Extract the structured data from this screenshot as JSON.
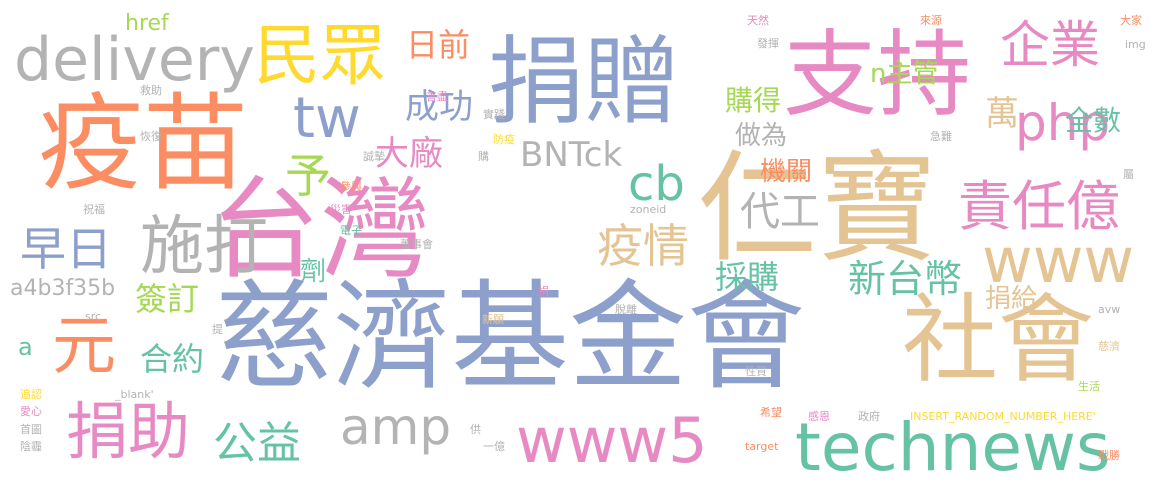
{
  "colors": {
    "orange": "#fc8d62",
    "blue": "#8da0cb",
    "pink": "#e78ac3",
    "green": "#66c2a5",
    "lime": "#a6d854",
    "yellow": "#ffd92f",
    "tan": "#e5c494",
    "gray": "#b3b3b3"
  },
  "words": [
    {
      "text": "慈濟基金會",
      "color": "blue"
    },
    {
      "text": "台灣",
      "color": "pink"
    },
    {
      "text": "仁寶",
      "color": "tan"
    },
    {
      "text": "疫苗",
      "color": "orange"
    },
    {
      "text": "捐贈",
      "color": "blue"
    },
    {
      "text": "支持",
      "color": "pink"
    },
    {
      "text": "社會",
      "color": "tan"
    },
    {
      "text": "technews",
      "color": "green"
    },
    {
      "text": "www5",
      "color": "pink"
    },
    {
      "text": "delivery",
      "color": "gray"
    },
    {
      "text": "民眾",
      "color": "yellow"
    },
    {
      "text": "施打",
      "color": "gray"
    },
    {
      "text": "捐助",
      "color": "pink"
    },
    {
      "text": "元",
      "color": "orange"
    },
    {
      "text": "www",
      "color": "tan"
    },
    {
      "text": "責任億",
      "color": "pink"
    },
    {
      "text": "企業",
      "color": "pink"
    },
    {
      "text": "php",
      "color": "pink"
    },
    {
      "text": "amp",
      "color": "gray"
    },
    {
      "text": "公益",
      "color": "green"
    },
    {
      "text": "tw",
      "color": "blue"
    },
    {
      "text": "早日",
      "color": "blue"
    },
    {
      "text": "cb",
      "color": "green"
    },
    {
      "text": "疫情",
      "color": "tan"
    },
    {
      "text": "代工",
      "color": "gray"
    },
    {
      "text": "新台幣",
      "color": "green"
    },
    {
      "text": "大廠",
      "color": "pink"
    },
    {
      "text": "成功",
      "color": "blue"
    },
    {
      "text": "日前",
      "color": "orange"
    },
    {
      "text": "BNTck",
      "color": "gray"
    },
    {
      "text": "萬",
      "color": "tan"
    },
    {
      "text": "予",
      "color": "lime"
    },
    {
      "text": "採購",
      "color": "green"
    },
    {
      "text": "合約",
      "color": "green"
    },
    {
      "text": "簽訂",
      "color": "lime"
    },
    {
      "text": "全數",
      "color": "green"
    },
    {
      "text": "購得",
      "color": "lime"
    },
    {
      "text": "做為",
      "color": "gray"
    },
    {
      "text": "機關",
      "color": "orange"
    },
    {
      "text": "n主管",
      "color": "lime"
    },
    {
      "text": "捐給",
      "color": "tan"
    },
    {
      "text": "劑",
      "color": "green"
    },
    {
      "text": "a4b3f35b",
      "color": "gray"
    },
    {
      "text": "href",
      "color": "lime"
    },
    {
      "text": "a",
      "color": "green"
    },
    {
      "text": "天然",
      "color": "pink"
    },
    {
      "text": "來源",
      "color": "orange"
    },
    {
      "text": "大家",
      "color": "orange"
    },
    {
      "text": "發揮",
      "color": "gray"
    },
    {
      "text": "img",
      "color": "gray"
    },
    {
      "text": "救助",
      "color": "gray"
    },
    {
      "text": "善盡",
      "color": "pink"
    },
    {
      "text": "實踐",
      "color": "gray"
    },
    {
      "text": "防疫",
      "color": "yellow"
    },
    {
      "text": "恢復",
      "color": "gray"
    },
    {
      "text": "購",
      "color": "gray"
    },
    {
      "text": "誠摯",
      "color": "gray"
    },
    {
      "text": "急難",
      "color": "gray"
    },
    {
      "text": "屬",
      "color": "gray"
    },
    {
      "text": "參與",
      "color": "orange"
    },
    {
      "text": "祝福",
      "color": "gray"
    },
    {
      "text": "災害",
      "color": "pink"
    },
    {
      "text": "zoneid",
      "color": "gray"
    },
    {
      "text": "電子",
      "color": "green"
    },
    {
      "text": "董事會",
      "color": "gray"
    },
    {
      "text": "捐",
      "color": "pink"
    },
    {
      "text": "src",
      "color": "gray"
    },
    {
      "text": "新願",
      "color": "tan"
    },
    {
      "text": "脫離",
      "color": "gray"
    },
    {
      "text": "avw",
      "color": "gray"
    },
    {
      "text": "提",
      "color": "gray"
    },
    {
      "text": "慈濟",
      "color": "tan"
    },
    {
      "text": "性質",
      "color": "gray"
    },
    {
      "text": "追認",
      "color": "yellow"
    },
    {
      "text": "_blank'",
      "color": "gray"
    },
    {
      "text": "生活",
      "color": "lime"
    },
    {
      "text": "愛心",
      "color": "pink"
    },
    {
      "text": "希望",
      "color": "orange"
    },
    {
      "text": "感恩",
      "color": "pink"
    },
    {
      "text": "政府",
      "color": "gray"
    },
    {
      "text": "INSERT_RANDOM_NUMBER_HERE'",
      "color": "yellow"
    },
    {
      "text": "首圖",
      "color": "gray"
    },
    {
      "text": "供",
      "color": "gray"
    },
    {
      "text": "陰霾",
      "color": "gray"
    },
    {
      "text": "一億",
      "color": "gray"
    },
    {
      "text": "target",
      "color": "orange"
    },
    {
      "text": "戰勝",
      "color": "orange"
    }
  ]
}
